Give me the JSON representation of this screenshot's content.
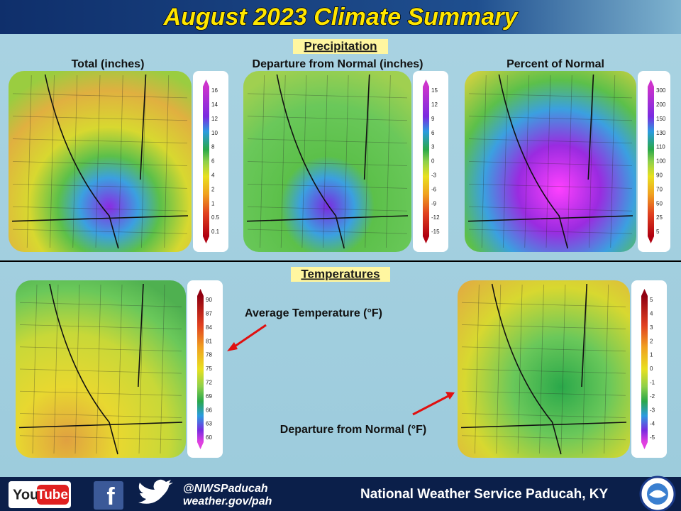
{
  "header": {
    "title": "August 2023 Climate Summary"
  },
  "precipitation": {
    "heading": "Precipitation",
    "maps": [
      {
        "label": "Total (inches)",
        "legend": [
          "16",
          "14",
          "12",
          "10",
          "8",
          "6",
          "4",
          "2",
          "1",
          "0.5",
          "0.1"
        ]
      },
      {
        "label": "Departure from Normal (inches)",
        "legend": [
          "15",
          "12",
          "9",
          "6",
          "3",
          "0",
          "-3",
          "-6",
          "-9",
          "-12",
          "-15"
        ]
      },
      {
        "label": "Percent of Normal",
        "legend": [
          "300",
          "200",
          "150",
          "130",
          "110",
          "100",
          "90",
          "70",
          "50",
          "25",
          "5"
        ]
      }
    ]
  },
  "temperatures": {
    "heading": "Temperatures",
    "maps": [
      {
        "label": "Average Temperature (°F)",
        "legend": [
          "90",
          "87",
          "84",
          "81",
          "78",
          "75",
          "72",
          "69",
          "66",
          "63",
          "60"
        ]
      },
      {
        "label": "Departure from Normal (°F)",
        "legend": [
          "5",
          "4",
          "3",
          "2",
          "1",
          "0",
          "-1",
          "-2",
          "-3",
          "-4",
          "-5"
        ]
      }
    ]
  },
  "footer": {
    "youtube_left": "You",
    "youtube_right": "Tube",
    "facebook": "f",
    "handle": "@NWSPaducah",
    "website": "weather.gov/pah",
    "office": "National Weather Service Paducah, KY"
  }
}
